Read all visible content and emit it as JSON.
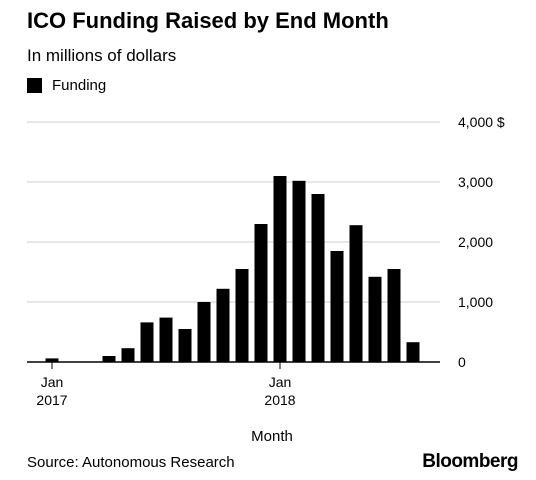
{
  "chart_data": {
    "type": "bar",
    "title": "ICO Funding Raised by End Month",
    "subtitle": "In millions of dollars",
    "xlabel": "Month",
    "ylabel": "",
    "source": "Source: Autonomous Research",
    "brand": "Bloomberg",
    "ylim": [
      0,
      4000
    ],
    "yticks": [
      0,
      1000,
      2000,
      3000,
      4000
    ],
    "ytick_labels": [
      "0",
      "1,000",
      "2,000",
      "3,000",
      "4,000 $"
    ],
    "grid": true,
    "legend_position": "top-left",
    "x_tick_labels": [
      {
        "category": "2017-01",
        "line1": "Jan",
        "line2": "2017"
      },
      {
        "category": "2018-01",
        "line1": "Jan",
        "line2": "2018"
      }
    ],
    "categories": [
      "2017-01",
      "2017-02",
      "2017-03",
      "2017-04",
      "2017-05",
      "2017-06",
      "2017-07",
      "2017-08",
      "2017-09",
      "2017-10",
      "2017-11",
      "2017-12",
      "2018-01",
      "2018-02",
      "2018-03",
      "2018-04",
      "2018-05",
      "2018-06",
      "2018-07",
      "2018-08"
    ],
    "series": [
      {
        "name": "Funding",
        "color": "#000000",
        "values": [
          60,
          0,
          0,
          100,
          230,
          660,
          740,
          550,
          1000,
          1220,
          1550,
          2300,
          3100,
          3020,
          2800,
          1850,
          2280,
          1420,
          1550,
          330
        ]
      }
    ]
  }
}
